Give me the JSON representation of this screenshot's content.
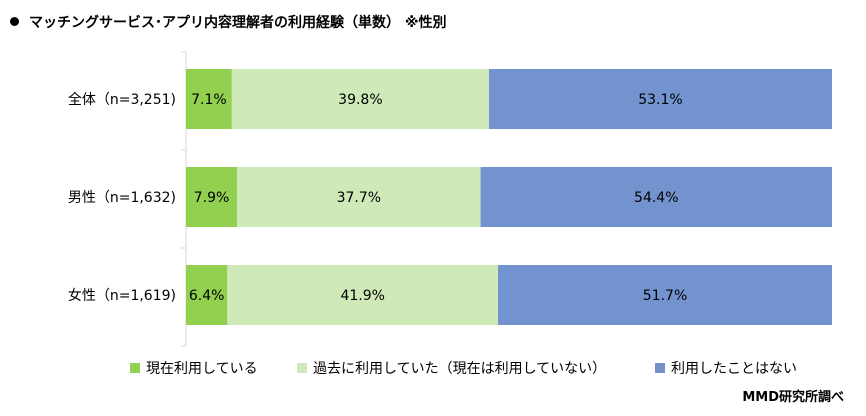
{
  "header": {
    "title": "マッチングサービス･アプリ内容理解者の利用経験（単数） ※性別"
  },
  "colors": {
    "current": "#92d050",
    "past": "#d0e9b8",
    "never": "#7393cf"
  },
  "chart_data": {
    "type": "bar",
    "orientation": "horizontal",
    "stacked": "100%",
    "categories": [
      "全体（n=3,251)",
      "男性（n=1,632)",
      "女性（n=1,619)"
    ],
    "series": [
      {
        "name": "現在利用している",
        "values": [
          7.1,
          7.9,
          6.4
        ],
        "labels": [
          "7.1%",
          "7.9%",
          "6.4%"
        ],
        "color": "#92d050"
      },
      {
        "name": "過去に利用していた（現在は利用していない）",
        "values": [
          39.8,
          37.7,
          41.9
        ],
        "labels": [
          "39.8%",
          "37.7%",
          "41.9%"
        ],
        "color": "#d0e9b8"
      },
      {
        "name": "利用したことはない",
        "values": [
          53.1,
          54.4,
          51.7
        ],
        "labels": [
          "53.1%",
          "54.4%",
          "51.7%"
        ],
        "color": "#7393cf"
      }
    ],
    "xlim": [
      0,
      100
    ],
    "grid": false,
    "legend_position": "bottom"
  },
  "legend": {
    "items": [
      "現在利用している",
      "過去に利用していた（現在は利用していない）",
      "利用したことはない"
    ]
  },
  "footer": {
    "credit": "MMD研究所調べ"
  }
}
